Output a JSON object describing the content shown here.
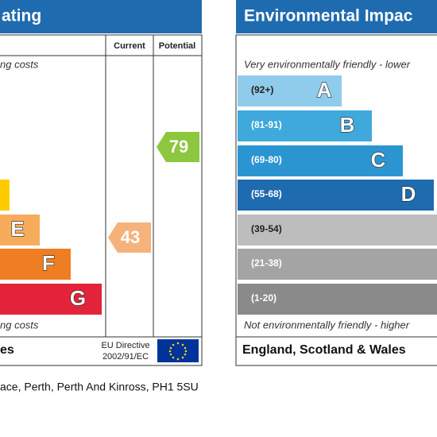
{
  "left_panel": {
    "title": "ating",
    "columns": [
      "Current",
      "Potential"
    ],
    "top_note": "ng costs",
    "bottom_note": "ng costs",
    "bands": [
      "E",
      "F",
      "G"
    ],
    "current": "43",
    "potential": "79",
    "footer": "es",
    "directive": [
      "EU Directive",
      "2002/91/EC"
    ]
  },
  "right_panel": {
    "title": "Environmental Impac",
    "top_note": "Very environmentally friendly - lower",
    "bottom_note": "Not environmentally friendly - higher",
    "ranges": [
      "(92+)",
      "(81-91)",
      "(69-80)",
      "(55-68)",
      "(39-54)",
      "(21-38)",
      "(1-20)"
    ],
    "letters": [
      "A",
      "B",
      "C",
      "D"
    ],
    "footer": "England, Scotland & Wales"
  },
  "address": "ace, Perth, Perth And Kinross, PH1 5SU"
}
